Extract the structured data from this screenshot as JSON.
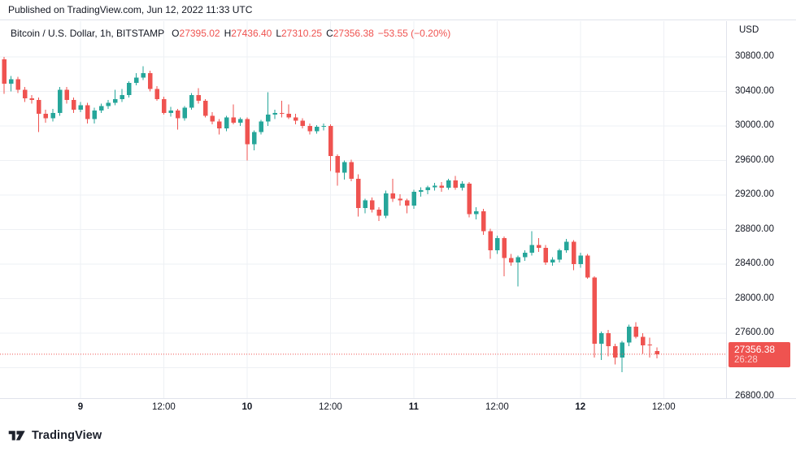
{
  "published_bar": {
    "text": "Published on TradingView.com, Jun 12, 2022 11:33 UTC"
  },
  "legend": {
    "symbol_title": "Bitcoin / U.S. Dollar, 1h, BITSTAMP",
    "ohlc": [
      {
        "prefix": "O",
        "value": "27395.02"
      },
      {
        "prefix": "H",
        "value": "27436.40"
      },
      {
        "prefix": "L",
        "value": "27310.25"
      },
      {
        "prefix": "C",
        "value": "27356.38"
      }
    ],
    "change_text": "−53.55 (−0.20%)"
  },
  "price_axis": {
    "currency_label": "USD",
    "ticks": [
      {
        "price": 30800,
        "label": "30800.00"
      },
      {
        "price": 30400,
        "label": "30400.00"
      },
      {
        "price": 30000,
        "label": "30000.00"
      },
      {
        "price": 29600,
        "label": "29600.00"
      },
      {
        "price": 29200,
        "label": "29200.00"
      },
      {
        "price": 28800,
        "label": "28800.00"
      },
      {
        "price": 28400,
        "label": "28400.00"
      },
      {
        "price": 28000,
        "label": "28000.00"
      },
      {
        "price": 27600,
        "label": "27600.00"
      },
      {
        "price": 26800,
        "label": "26800.00"
      }
    ],
    "price_badge": {
      "price": "27356.38",
      "countdown": "26:28",
      "color": "#ef5350"
    }
  },
  "time_axis": {
    "ticks": [
      {
        "label": "9",
        "index": 11,
        "major": true
      },
      {
        "label": "12:00",
        "index": 23,
        "major": false
      },
      {
        "label": "10",
        "index": 35,
        "major": true
      },
      {
        "label": "12:00",
        "index": 47,
        "major": false
      },
      {
        "label": "11",
        "index": 59,
        "major": true
      },
      {
        "label": "12:00",
        "index": 71,
        "major": false
      },
      {
        "label": "12",
        "index": 83,
        "major": true
      },
      {
        "label": "12:00",
        "index": 95,
        "major": false
      }
    ]
  },
  "watermark": {
    "logo_text": "TradingView"
  },
  "colors": {
    "up": "#26a69a",
    "down": "#ef5350",
    "grid": "#eef0f4",
    "axis_border": "#e0e3eb",
    "text": "#131722",
    "badge_bg": "#ef5350"
  },
  "chart_data": {
    "type": "candlestick",
    "title": "Bitcoin / U.S. Dollar",
    "exchange": "BITSTAMP",
    "interval": "1h",
    "unit": "USD",
    "start_time": "Jun 8 2022 13:00 UTC",
    "last_price": 27356.38,
    "price_change": -53.55,
    "price_change_pct": -0.2,
    "y_range_visible": [
      26800,
      30900
    ],
    "price_gridlines": [
      30800,
      30400,
      30000,
      29600,
      29200,
      28800,
      28400,
      28000,
      27600,
      27200,
      26800
    ],
    "time_labels": [
      "9",
      "12:00",
      "10",
      "12:00",
      "11",
      "12:00",
      "12",
      "12:00"
    ],
    "candles": [
      [
        30770,
        30800,
        30370,
        30490
      ],
      [
        30490,
        30580,
        30400,
        30540
      ],
      [
        30540,
        30570,
        30380,
        30420
      ],
      [
        30420,
        30450,
        30280,
        30320
      ],
      [
        30320,
        30360,
        30260,
        30300
      ],
      [
        30300,
        30330,
        29930,
        30140
      ],
      [
        30140,
        30190,
        30040,
        30090
      ],
      [
        30090,
        30200,
        30050,
        30150
      ],
      [
        30150,
        30450,
        30120,
        30420
      ],
      [
        30420,
        30450,
        30260,
        30300
      ],
      [
        30300,
        30330,
        30150,
        30190
      ],
      [
        30190,
        30280,
        30160,
        30240
      ],
      [
        30240,
        30270,
        30030,
        30080
      ],
      [
        30080,
        30210,
        30030,
        30180
      ],
      [
        30180,
        30260,
        30150,
        30230
      ],
      [
        30230,
        30300,
        30200,
        30270
      ],
      [
        30270,
        30420,
        30240,
        30310
      ],
      [
        30310,
        30430,
        30280,
        30360
      ],
      [
        30360,
        30520,
        30330,
        30500
      ],
      [
        30500,
        30610,
        30470,
        30560
      ],
      [
        30560,
        30690,
        30530,
        30610
      ],
      [
        30610,
        30640,
        30400,
        30430
      ],
      [
        30430,
        30460,
        30290,
        30310
      ],
      [
        30310,
        30340,
        30130,
        30150
      ],
      [
        30150,
        30220,
        30110,
        30180
      ],
      [
        30180,
        30200,
        29960,
        30090
      ],
      [
        30090,
        30230,
        30060,
        30210
      ],
      [
        30210,
        30380,
        30190,
        30360
      ],
      [
        30360,
        30440,
        30260,
        30290
      ],
      [
        30290,
        30310,
        30100,
        30120
      ],
      [
        30120,
        30160,
        30020,
        30050
      ],
      [
        30050,
        30080,
        29900,
        29970
      ],
      [
        29970,
        30120,
        29940,
        30100
      ],
      [
        30100,
        30250,
        30020,
        30040
      ],
      [
        30040,
        30100,
        30000,
        30080
      ],
      [
        30080,
        30100,
        29600,
        29790
      ],
      [
        29790,
        29950,
        29720,
        29930
      ],
      [
        29930,
        30070,
        29900,
        30050
      ],
      [
        30050,
        30390,
        30000,
        30130
      ],
      [
        30130,
        30190,
        30080,
        30150
      ],
      [
        30150,
        30290,
        30100,
        30140
      ],
      [
        30140,
        30250,
        30080,
        30100
      ],
      [
        30100,
        30140,
        30020,
        30060
      ],
      [
        30060,
        30090,
        29970,
        30000
      ],
      [
        30000,
        30030,
        29900,
        29940
      ],
      [
        29940,
        30010,
        29910,
        29990
      ],
      [
        29990,
        30030,
        29950,
        30000
      ],
      [
        30000,
        30020,
        29480,
        29650
      ],
      [
        29650,
        29670,
        29310,
        29460
      ],
      [
        29460,
        29600,
        29380,
        29580
      ],
      [
        29580,
        29610,
        29360,
        29390
      ],
      [
        29390,
        29440,
        28950,
        29050
      ],
      [
        29050,
        29160,
        28990,
        29140
      ],
      [
        29140,
        29170,
        29000,
        29030
      ],
      [
        29030,
        29060,
        28900,
        28960
      ],
      [
        28960,
        29250,
        28930,
        29220
      ],
      [
        29220,
        29390,
        29120,
        29160
      ],
      [
        29160,
        29210,
        29080,
        29140
      ],
      [
        29140,
        29160,
        28990,
        29080
      ],
      [
        29080,
        29260,
        29040,
        29240
      ],
      [
        29240,
        29290,
        29180,
        29255
      ],
      [
        29255,
        29310,
        29210,
        29290
      ],
      [
        29290,
        29340,
        29250,
        29310
      ],
      [
        29310,
        29350,
        29240,
        29285
      ],
      [
        29285,
        29390,
        29260,
        29370
      ],
      [
        29370,
        29420,
        29260,
        29285
      ],
      [
        29285,
        29360,
        29250,
        29330
      ],
      [
        29330,
        29350,
        28940,
        28980
      ],
      [
        28980,
        29060,
        28920,
        29010
      ],
      [
        29010,
        29040,
        28740,
        28780
      ],
      [
        28780,
        28810,
        28460,
        28560
      ],
      [
        28560,
        28730,
        28520,
        28700
      ],
      [
        28700,
        28720,
        28260,
        28470
      ],
      [
        28470,
        28520,
        28380,
        28420
      ],
      [
        28420,
        28500,
        28140,
        28480
      ],
      [
        28480,
        28560,
        28440,
        28530
      ],
      [
        28530,
        28780,
        28500,
        28620
      ],
      [
        28620,
        28700,
        28540,
        28590
      ],
      [
        28590,
        28620,
        28390,
        28420
      ],
      [
        28420,
        28480,
        28380,
        28450
      ],
      [
        28450,
        28580,
        28420,
        28560
      ],
      [
        28560,
        28690,
        28530,
        28660
      ],
      [
        28660,
        28680,
        28330,
        28400
      ],
      [
        28400,
        28530,
        28360,
        28500
      ],
      [
        28500,
        28520,
        28230,
        28245
      ],
      [
        28245,
        28260,
        27320,
        27480
      ],
      [
        27480,
        27620,
        27290,
        27600
      ],
      [
        27600,
        27640,
        27330,
        27450
      ],
      [
        27450,
        27480,
        27240,
        27320
      ],
      [
        27320,
        27510,
        27150,
        27490
      ],
      [
        27490,
        27700,
        27450,
        27675
      ],
      [
        27675,
        27725,
        27540,
        27560
      ],
      [
        27560,
        27600,
        27360,
        27460
      ],
      [
        27470,
        27550,
        27320,
        27460
      ],
      [
        27395.02,
        27436.4,
        27310.25,
        27356.38
      ]
    ]
  }
}
